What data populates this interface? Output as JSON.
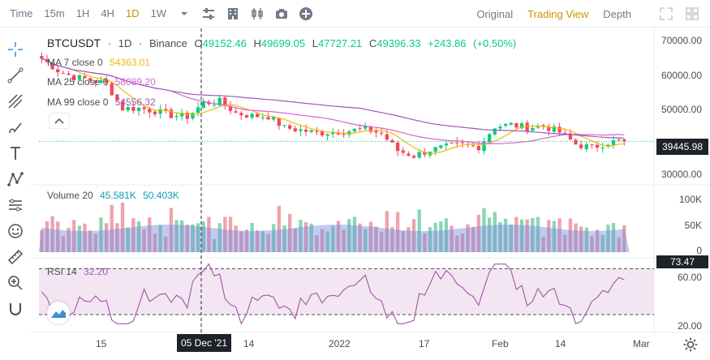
{
  "toolbar": {
    "time_label": "Time",
    "intervals": [
      "15m",
      "1H",
      "4H",
      "1D",
      "1W"
    ],
    "active_interval": "1D",
    "views": [
      "Original",
      "Trading View",
      "Depth"
    ],
    "active_view": "Trading View"
  },
  "legend": {
    "symbol": "BTCUSDT",
    "interval": "1D",
    "exchange": "Binance",
    "open_label": "O",
    "open": "49152.46",
    "high_label": "H",
    "high": "49699.05",
    "low_label": "L",
    "low": "47727.21",
    "close_label": "C",
    "close": "49396.33",
    "change": "+243.86",
    "change_pct": "(+0.50%)",
    "ma7_label": "MA 7 close 0",
    "ma7_value": "54363.01",
    "ma25_label": "MA 25 close 0",
    "ma25_value": "58089.20",
    "ma99_label": "MA 99 close 0",
    "ma99_value": "54556.32",
    "volume_label": "Volume 20",
    "volume_value1": "45.581K",
    "volume_value2": "50.403K",
    "rsi_label": "RSI 14",
    "rsi_value": "32.20"
  },
  "axes": {
    "price_ticks": [
      "70000.00",
      "60000.00",
      "50000.00",
      "40000.00",
      "30000.00"
    ],
    "current_price": "39445.98",
    "volume_ticks": [
      "100K",
      "50K",
      "0"
    ],
    "rsi_ticks": [
      "60.00",
      "20.00"
    ],
    "rsi_tag": "73.47",
    "date_ticks": [
      "15",
      "14",
      "2022",
      "17",
      "Feb",
      "14",
      "Mar"
    ],
    "crosshair_date": "05 Dec '21"
  },
  "colors": {
    "up": "#0ecb81",
    "down": "#f6465d",
    "ma7": "#f0b90b",
    "ma25": "#d563d3",
    "ma99": "#9b59b6",
    "accent": "#c99400"
  },
  "icons": {
    "dropdown": "chevron-down-icon",
    "indicators": "sliders-icon",
    "layout": "building-icon",
    "chart_type": "candles-icon",
    "screenshot": "camera-icon",
    "add": "plus-circle-icon",
    "fullscreen": "expand-icon",
    "grid": "grid-icon"
  },
  "chart_data": {
    "type": "candlestick",
    "x": [
      "2021-11-15",
      "2021-12-05",
      "2021-12-14",
      "2022-01-01",
      "2022-01-17",
      "2022-02-01",
      "2022-02-14",
      "2022-03-01"
    ],
    "candles_close_approx": [
      64000,
      60500,
      58500,
      57800,
      56500,
      49200,
      49300,
      48500,
      47200,
      46800,
      50800,
      51300,
      47900,
      47000,
      46900,
      43500,
      42800,
      41900,
      42300,
      42600,
      43100,
      41800,
      36700,
      35200,
      36900,
      37800,
      38400,
      37900,
      43900,
      44400,
      43500,
      44100,
      42200,
      38600,
      37600,
      39200,
      39500
    ],
    "volume_ticks": [
      0,
      50000,
      100000
    ],
    "rsi_current": 32.2,
    "price_range": [
      28000,
      72000
    ],
    "rsi_range": [
      18,
      78
    ]
  }
}
